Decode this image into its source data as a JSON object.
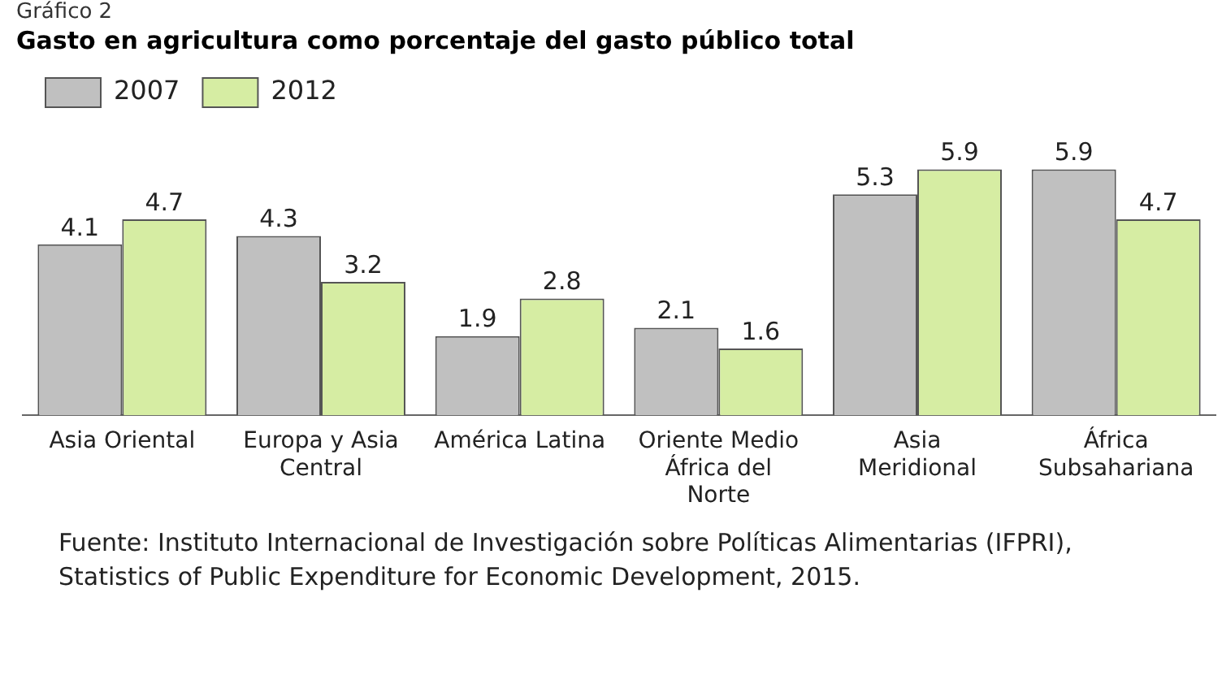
{
  "chart_data": {
    "type": "bar",
    "title": "Gasto en agricultura como porcentaje del gasto público total",
    "categories": [
      "Asia Oriental",
      "Europa y Asia Central",
      "América Latina",
      "Oriente Medio África del Norte",
      "Asia Meridional",
      "África Subsahariana"
    ],
    "series": [
      {
        "name": "2007",
        "color": "#c0c0c0",
        "values": [
          4.1,
          4.3,
          1.9,
          2.1,
          5.3,
          5.9
        ]
      },
      {
        "name": "2012",
        "color": "#d6eda3",
        "values": [
          4.7,
          3.2,
          2.8,
          1.6,
          5.9,
          4.7
        ]
      }
    ],
    "data_labels": true,
    "legend": "top left",
    "grid": false,
    "annotations": [
      "Gráfico 2",
      "Fuente: Instituto Internacional de Investigación sobre Políticas Alimentarias (IFPRI), Statistics of Public Expenditure for Economic Development, 2015."
    ]
  }
}
